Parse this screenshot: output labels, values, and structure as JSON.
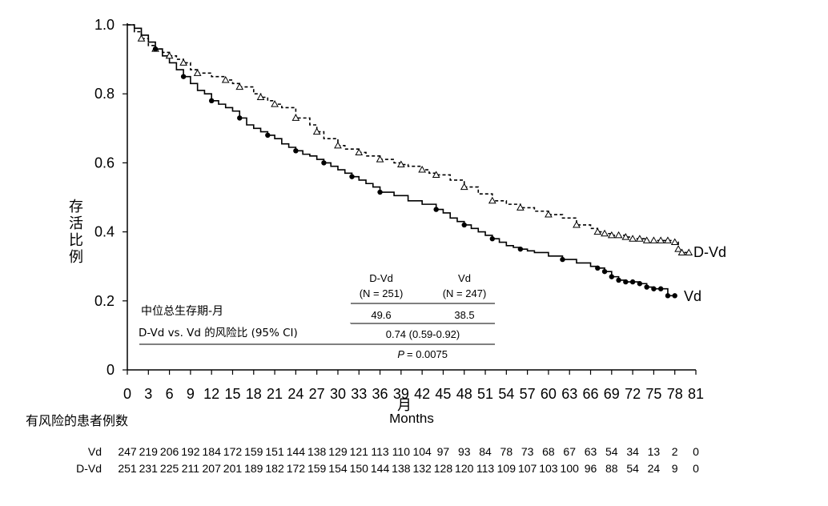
{
  "chart_data": {
    "type": "line",
    "xlabel": "月",
    "xlabel_overlap": "Months",
    "ylabel": "存活比例",
    "xlim": [
      0,
      81
    ],
    "ylim": [
      0,
      1.0
    ],
    "x_ticks": [
      "0",
      "3",
      "6",
      "9",
      "12",
      "15",
      "18",
      "21",
      "24",
      "27",
      "30",
      "33",
      "36",
      "39",
      "42",
      "45",
      "48",
      "51",
      "54",
      "57",
      "60",
      "63",
      "66",
      "69",
      "72",
      "75",
      "78",
      "81"
    ],
    "y_ticks": [
      "0",
      "0.2",
      "0.4",
      "0.6",
      "0.8",
      "1.0"
    ],
    "grid": false,
    "series": [
      {
        "name": "D-Vd",
        "style": "dashed",
        "marker": "triangle-open",
        "x": [
          0,
          1,
          2,
          3,
          4,
          5,
          6,
          7,
          8,
          9,
          10,
          12,
          14,
          15,
          16,
          18,
          19,
          20,
          21,
          22,
          24,
          26,
          27,
          28,
          30,
          31,
          33,
          34,
          36,
          38,
          39,
          40,
          42,
          43,
          44,
          46,
          48,
          50,
          52,
          54,
          56,
          58,
          60,
          62,
          64,
          66,
          67,
          68,
          69,
          70,
          71,
          72,
          73,
          74,
          75,
          76,
          77,
          78,
          78.5,
          79,
          80
        ],
        "y": [
          1.0,
          0.98,
          0.96,
          0.94,
          0.93,
          0.92,
          0.91,
          0.9,
          0.89,
          0.87,
          0.86,
          0.85,
          0.84,
          0.83,
          0.82,
          0.8,
          0.79,
          0.78,
          0.77,
          0.76,
          0.73,
          0.71,
          0.69,
          0.67,
          0.65,
          0.64,
          0.63,
          0.62,
          0.61,
          0.6,
          0.595,
          0.59,
          0.58,
          0.57,
          0.565,
          0.55,
          0.53,
          0.51,
          0.49,
          0.48,
          0.47,
          0.46,
          0.45,
          0.44,
          0.42,
          0.41,
          0.4,
          0.395,
          0.39,
          0.39,
          0.385,
          0.38,
          0.38,
          0.375,
          0.375,
          0.375,
          0.375,
          0.37,
          0.35,
          0.34,
          0.34
        ]
      },
      {
        "name": "Vd",
        "style": "solid",
        "marker": "circle-filled",
        "x": [
          0,
          1,
          2,
          3,
          4,
          5,
          6,
          7,
          8,
          9,
          10,
          11,
          12,
          13,
          14,
          15,
          16,
          17,
          18,
          19,
          20,
          21,
          22,
          23,
          24,
          25,
          26,
          27,
          28,
          29,
          30,
          31,
          32,
          33,
          34,
          35,
          36,
          38,
          40,
          42,
          44,
          45,
          46,
          47,
          48,
          49,
          50,
          51,
          52,
          53,
          54,
          55,
          56,
          57,
          58,
          60,
          62,
          64,
          66,
          67,
          68,
          69,
          70,
          71,
          72,
          73,
          74,
          75,
          76,
          77,
          78
        ],
        "y": [
          1.0,
          0.99,
          0.97,
          0.95,
          0.93,
          0.91,
          0.89,
          0.87,
          0.85,
          0.83,
          0.81,
          0.8,
          0.78,
          0.77,
          0.76,
          0.75,
          0.73,
          0.71,
          0.7,
          0.69,
          0.68,
          0.67,
          0.655,
          0.645,
          0.635,
          0.625,
          0.62,
          0.61,
          0.6,
          0.59,
          0.58,
          0.57,
          0.56,
          0.55,
          0.54,
          0.53,
          0.515,
          0.505,
          0.49,
          0.48,
          0.465,
          0.455,
          0.44,
          0.43,
          0.42,
          0.41,
          0.4,
          0.39,
          0.38,
          0.37,
          0.36,
          0.355,
          0.35,
          0.345,
          0.34,
          0.33,
          0.32,
          0.31,
          0.3,
          0.295,
          0.285,
          0.27,
          0.26,
          0.255,
          0.255,
          0.25,
          0.24,
          0.235,
          0.235,
          0.215,
          0.215
        ]
      }
    ],
    "series_labels": [
      "D-Vd",
      "Vd"
    ],
    "table": {
      "col_headers": [
        "D-Vd",
        "Vd"
      ],
      "col_n": [
        "(N = 251)",
        "(N = 247)"
      ],
      "row1_label": "中位总生存期-月",
      "row1_values": [
        "49.6",
        "38.5"
      ],
      "row2_label": "D-Vd vs. Vd 的风险比 (95% CI)",
      "row2_value": "0.74 (0.59-0.92)",
      "p_label": "P",
      "p_value": "= 0.0075"
    },
    "risk_table": {
      "title": "有风险的患者例数",
      "rows": [
        {
          "label": "Vd",
          "values": [
            "247",
            "219",
            "206",
            "192",
            "184",
            "172",
            "159",
            "151",
            "144",
            "138",
            "129",
            "121",
            "113",
            "110",
            "104",
            "97",
            "93",
            "84",
            "78",
            "73",
            "68",
            "67",
            "63",
            "54",
            "34",
            "13",
            "2",
            "0"
          ]
        },
        {
          "label": "D-Vd",
          "values": [
            "251",
            "231",
            "225",
            "211",
            "207",
            "201",
            "189",
            "182",
            "172",
            "159",
            "154",
            "150",
            "144",
            "138",
            "132",
            "128",
            "120",
            "113",
            "109",
            "107",
            "103",
            "100",
            "96",
            "88",
            "54",
            "24",
            "9",
            "0"
          ]
        }
      ]
    }
  }
}
